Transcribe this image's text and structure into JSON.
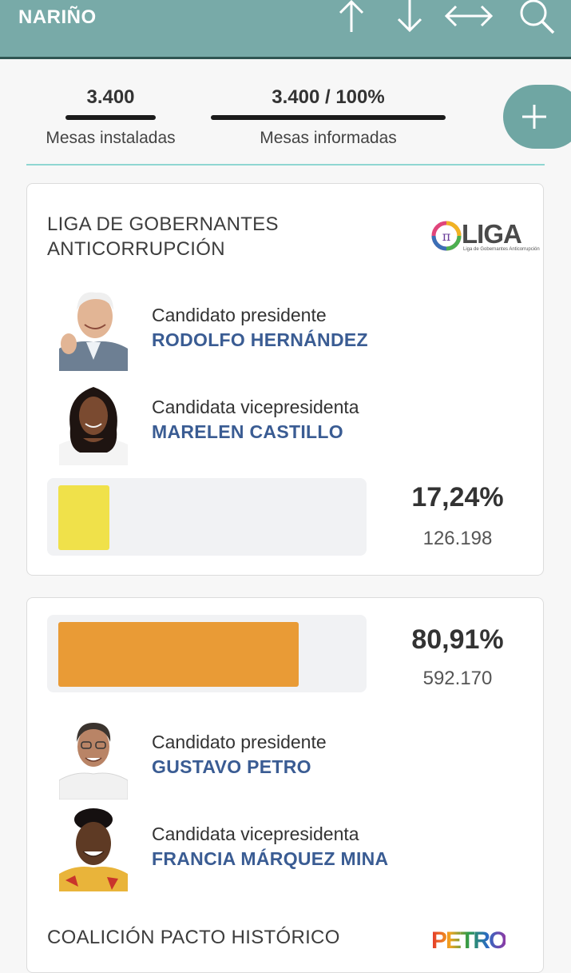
{
  "header": {
    "region": "NARIÑO"
  },
  "stats": {
    "installed_value": "3.400",
    "installed_label": "Mesas instaladas",
    "reported_value": "3.400 / 100%",
    "reported_label": "Mesas informadas"
  },
  "cards": [
    {
      "party": "LIGA DE GOBERNANTES ANTICORRUPCIÓN",
      "party_line1": "LIGA DE GOBERNANTES",
      "party_line2": "ANTICORRUPCIÓN",
      "logo_text": "LIGA",
      "logo_subtext": "Liga de Gobernantes Anticorrupción",
      "president_role": "Candidato presidente",
      "president_name": "RODOLFO HERNÁNDEZ",
      "vp_role": "Candidata vicepresidenta",
      "vp_name": "MARELEN CASTILLO",
      "percent": "17,24%",
      "percent_value": 17.24,
      "votes": "126.198",
      "bar_color": "#f0e14a"
    },
    {
      "party": "COALICIÓN PACTO HISTÓRICO",
      "logo_text": "PETRO",
      "president_role": "Candidato presidente",
      "president_name": "GUSTAVO PETRO",
      "vp_role": "Candidata vicepresidenta",
      "vp_name": "FRANCIA MÁRQUEZ MINA",
      "percent": "80,91%",
      "percent_value": 80.91,
      "votes": "592.170",
      "bar_color": "#e99b36"
    }
  ],
  "colors": {
    "header_bg": "#78aaa8",
    "name_blue": "#3a5c93",
    "divider": "#8fd6d2"
  },
  "icons": [
    "arrow-up-icon",
    "arrow-down-icon",
    "arrow-left-right-icon",
    "search-icon",
    "plus-icon"
  ]
}
